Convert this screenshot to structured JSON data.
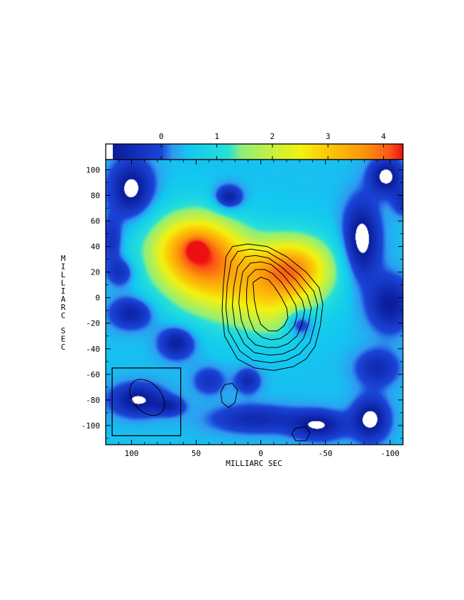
{
  "chart_data": {
    "type": "heatmap",
    "title": "",
    "xlabel": "MILLIARC SEC",
    "ylabel": "MILLIARC SEC",
    "xlim": [
      120,
      -110
    ],
    "ylim": [
      -115,
      108
    ],
    "x_reversed": true,
    "x_ticks": [
      100,
      50,
      0,
      -50,
      -100
    ],
    "x_tick_labels": [
      "100",
      "50",
      "0",
      "-50",
      "-100"
    ],
    "y_ticks": [
      100,
      80,
      60,
      40,
      20,
      0,
      -20,
      -40,
      -60,
      -80,
      -100
    ],
    "y_tick_labels": [
      "100",
      "80",
      "60",
      "40",
      "20",
      "0",
      "-20",
      "-40",
      "-60",
      "-80",
      "-100"
    ],
    "colorbar": {
      "range": [
        -1.0,
        4.35
      ],
      "ticks": [
        0,
        1,
        2,
        3,
        4
      ],
      "tick_labels": [
        "0",
        "1",
        "2",
        "3",
        "4"
      ],
      "placement": "top",
      "stops": [
        {
          "v": -1.0,
          "color": "#ffffff"
        },
        {
          "v": -0.88,
          "color": "#ffffff"
        },
        {
          "v": -0.87,
          "color": "#0a1c9a"
        },
        {
          "v": 0.0,
          "color": "#1b44d8"
        },
        {
          "v": 0.2,
          "color": "#2f9af0"
        },
        {
          "v": 0.5,
          "color": "#12c8f0"
        },
        {
          "v": 1.2,
          "color": "#26e0d8"
        },
        {
          "v": 1.45,
          "color": "#8fef7a"
        },
        {
          "v": 2.0,
          "color": "#c8f03e"
        },
        {
          "v": 2.5,
          "color": "#f2f210"
        },
        {
          "v": 3.0,
          "color": "#fcc808"
        },
        {
          "v": 3.6,
          "color": "#fc9a0a"
        },
        {
          "v": 4.1,
          "color": "#fa5a16"
        },
        {
          "v": 4.35,
          "color": "#ee1010"
        }
      ]
    },
    "image": {
      "background": 0.45,
      "components": [
        {
          "x": 50,
          "y": 38,
          "sx": 25,
          "sy": 20,
          "amp": 3.3
        },
        {
          "x": -25,
          "y": 22,
          "sx": 22,
          "sy": 18,
          "amp": 3.0
        },
        {
          "x": 12,
          "y": 5,
          "sx": 30,
          "sy": 22,
          "amp": 1.2
        },
        {
          "x": 40,
          "y": 10,
          "sx": 28,
          "sy": 20,
          "amp": 0.9
        },
        {
          "x": 50,
          "y": 38,
          "sx": 5,
          "sy": 5,
          "amp": 0.8
        },
        {
          "x": -10,
          "y": -15,
          "sx": 18,
          "sy": 14,
          "amp": 0.7
        },
        {
          "x": 100,
          "y": 85,
          "sx": 12,
          "sy": 16,
          "amp": -1.5
        },
        {
          "x": 25,
          "y": 78,
          "sx": 8,
          "sy": 7,
          "amp": -1.4
        },
        {
          "x": -78,
          "y": 45,
          "sx": 10,
          "sy": 22,
          "amp": -1.6
        },
        {
          "x": -97,
          "y": 95,
          "sx": 9,
          "sy": 10,
          "amp": -1.5
        },
        {
          "x": 100,
          "y": -12,
          "sx": 12,
          "sy": 9,
          "amp": -1.2
        },
        {
          "x": 108,
          "y": 20,
          "sx": 8,
          "sy": 8,
          "amp": -1.0
        },
        {
          "x": 65,
          "y": -35,
          "sx": 10,
          "sy": 9,
          "amp": -1.3
        },
        {
          "x": 95,
          "y": -80,
          "sx": 15,
          "sy": 9,
          "amp": -1.4
        },
        {
          "x": 70,
          "y": -85,
          "sx": 8,
          "sy": 5,
          "amp": -0.9
        },
        {
          "x": -30,
          "y": -20,
          "sx": 7,
          "sy": 7,
          "amp": -1.3
        },
        {
          "x": -100,
          "y": -5,
          "sx": 12,
          "sy": 15,
          "amp": -1.3
        },
        {
          "x": -90,
          "y": -55,
          "sx": 12,
          "sy": 10,
          "amp": -1.0
        },
        {
          "x": -85,
          "y": -95,
          "sx": 10,
          "sy": 12,
          "amp": -1.5
        },
        {
          "x": -45,
          "y": -100,
          "sx": 15,
          "sy": 8,
          "amp": -1.3
        },
        {
          "x": 10,
          "y": -65,
          "sx": 7,
          "sy": 7,
          "amp": -1.0
        },
        {
          "x": 5,
          "y": -95,
          "sx": 25,
          "sy": 8,
          "amp": -1.0
        },
        {
          "x": 40,
          "y": -65,
          "sx": 9,
          "sy": 8,
          "amp": -0.8
        },
        {
          "x": 115,
          "y": 45,
          "sx": 6,
          "sy": 12,
          "amp": -0.9
        },
        {
          "x": -110,
          "y": 75,
          "sx": 6,
          "sy": 8,
          "amp": -0.8
        }
      ]
    },
    "contours": {
      "color": "#000000",
      "rings": [
        [
          [
            27,
            32
          ],
          [
            22,
            40
          ],
          [
            10,
            42
          ],
          [
            -5,
            40
          ],
          [
            -20,
            32
          ],
          [
            -35,
            20
          ],
          [
            -45,
            8
          ],
          [
            -48,
            -5
          ],
          [
            -46,
            -22
          ],
          [
            -42,
            -38
          ],
          [
            -35,
            -48
          ],
          [
            -25,
            -54
          ],
          [
            -10,
            -57
          ],
          [
            5,
            -55
          ],
          [
            18,
            -48
          ],
          [
            28,
            -30
          ],
          [
            30,
            -10
          ],
          [
            29,
            10
          ]
        ],
        [
          [
            23,
            28
          ],
          [
            18,
            36
          ],
          [
            8,
            38
          ],
          [
            -5,
            36
          ],
          [
            -18,
            28
          ],
          [
            -30,
            18
          ],
          [
            -41,
            5
          ],
          [
            -44,
            -6
          ],
          [
            -42,
            -20
          ],
          [
            -38,
            -35
          ],
          [
            -30,
            -44
          ],
          [
            -20,
            -49
          ],
          [
            -8,
            -51
          ],
          [
            6,
            -49
          ],
          [
            16,
            -42
          ],
          [
            25,
            -26
          ],
          [
            27,
            -8
          ],
          [
            26,
            10
          ]
        ],
        [
          [
            18,
            24
          ],
          [
            12,
            32
          ],
          [
            4,
            33
          ],
          [
            -6,
            31
          ],
          [
            -16,
            24
          ],
          [
            -27,
            14
          ],
          [
            -36,
            2
          ],
          [
            -39,
            -8
          ],
          [
            -37,
            -20
          ],
          [
            -33,
            -32
          ],
          [
            -26,
            -40
          ],
          [
            -17,
            -44
          ],
          [
            -7,
            -45
          ],
          [
            5,
            -43
          ],
          [
            13,
            -36
          ],
          [
            20,
            -22
          ],
          [
            22,
            -6
          ],
          [
            21,
            8
          ]
        ],
        [
          [
            14,
            20
          ],
          [
            8,
            27
          ],
          [
            0,
            28
          ],
          [
            -8,
            26
          ],
          [
            -17,
            18
          ],
          [
            -25,
            8
          ],
          [
            -32,
            -2
          ],
          [
            -34,
            -10
          ],
          [
            -32,
            -20
          ],
          [
            -28,
            -30
          ],
          [
            -21,
            -36
          ],
          [
            -13,
            -39
          ],
          [
            -5,
            -39
          ],
          [
            4,
            -37
          ],
          [
            10,
            -31
          ],
          [
            15,
            -18
          ],
          [
            17,
            -4
          ],
          [
            16,
            8
          ]
        ],
        [
          [
            10,
            16
          ],
          [
            4,
            22
          ],
          [
            -3,
            22
          ],
          [
            -9,
            19
          ],
          [
            -16,
            12
          ],
          [
            -22,
            3
          ],
          [
            -27,
            -6
          ],
          [
            -28,
            -14
          ],
          [
            -26,
            -22
          ],
          [
            -21,
            -28
          ],
          [
            -15,
            -32
          ],
          [
            -8,
            -33
          ],
          [
            -1,
            -31
          ],
          [
            5,
            -26
          ],
          [
            9,
            -16
          ],
          [
            11,
            -4
          ],
          [
            11,
            6
          ]
        ],
        [
          [
            6,
            12
          ],
          [
            0,
            16
          ],
          [
            -6,
            14
          ],
          [
            -11,
            8
          ],
          [
            -16,
            0
          ],
          [
            -20,
            -8
          ],
          [
            -21,
            -16
          ],
          [
            -18,
            -22
          ],
          [
            -13,
            -26
          ],
          [
            -6,
            -26
          ],
          [
            0,
            -21
          ],
          [
            3,
            -12
          ],
          [
            5,
            -2
          ]
        ],
        [
          [
            28,
            -68
          ],
          [
            22,
            -67
          ],
          [
            18,
            -72
          ],
          [
            20,
            -82
          ],
          [
            25,
            -86
          ],
          [
            30,
            -82
          ],
          [
            31,
            -74
          ]
        ],
        [
          [
            -27,
            -102
          ],
          [
            -35,
            -101
          ],
          [
            -38,
            -106
          ],
          [
            -35,
            -112
          ],
          [
            -27,
            -112
          ],
          [
            -24,
            -106
          ]
        ]
      ]
    },
    "beam": {
      "box": {
        "x0": 115,
        "x1": 62,
        "y0": -108,
        "y1": -55
      },
      "ellipse": {
        "cx": 88,
        "cy": -78,
        "a": 16,
        "b": 11,
        "pa_deg": 48
      }
    }
  }
}
